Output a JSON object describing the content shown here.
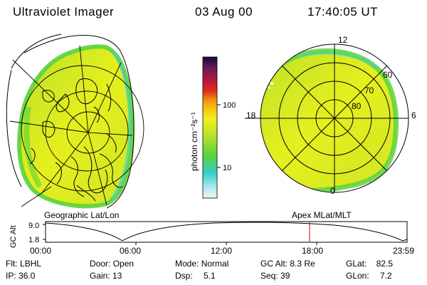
{
  "header": {
    "instrument": "Ultraviolet Imager",
    "date": "03 Aug 00",
    "time": "17:40:05 UT"
  },
  "colorbar": {
    "unit_label": "photon cm⁻²s⁻¹",
    "ticks": [
      "100",
      "10"
    ]
  },
  "left_panel": {
    "caption": "Geographic Lat/Lon"
  },
  "right_panel": {
    "caption": "Apex MLat/MLT",
    "mlt_labels": [
      "12",
      "18",
      "6",
      "0"
    ],
    "mlat_labels": [
      "60",
      "70",
      "80"
    ]
  },
  "altitude_plot": {
    "ylabel": "GC Alt",
    "y_ticks": [
      "9.0",
      "1.8"
    ],
    "x_ticks": [
      "00:00",
      "06:00",
      "12:00",
      "18:00",
      "23:59"
    ],
    "marker_color": "#cc0000"
  },
  "status": {
    "filter_label": "Flt:",
    "filter_value": "LBHL",
    "ip_label": "IP:",
    "ip_value": "36.0",
    "door_label": "Door:",
    "door_value": "Open",
    "gain_label": "Gain:",
    "gain_value": "13",
    "mode_label": "Mode:",
    "mode_value": "Normal",
    "dsp_label": "Dsp:",
    "dsp_value": "5.1",
    "gcalt_label": "GC Alt:",
    "gcalt_value": "8.3 Re",
    "seq_label": "Seq:",
    "seq_value": "39",
    "glat_label": "GLat:",
    "glat_value": "82.5",
    "glon_label": "GLon:",
    "glon_value": "7.2"
  },
  "colors": {
    "green": "#5ad23c",
    "yellow_green": "#c8e62a",
    "yellow": "#e8f01e",
    "cyan": "#3cd2c8"
  }
}
